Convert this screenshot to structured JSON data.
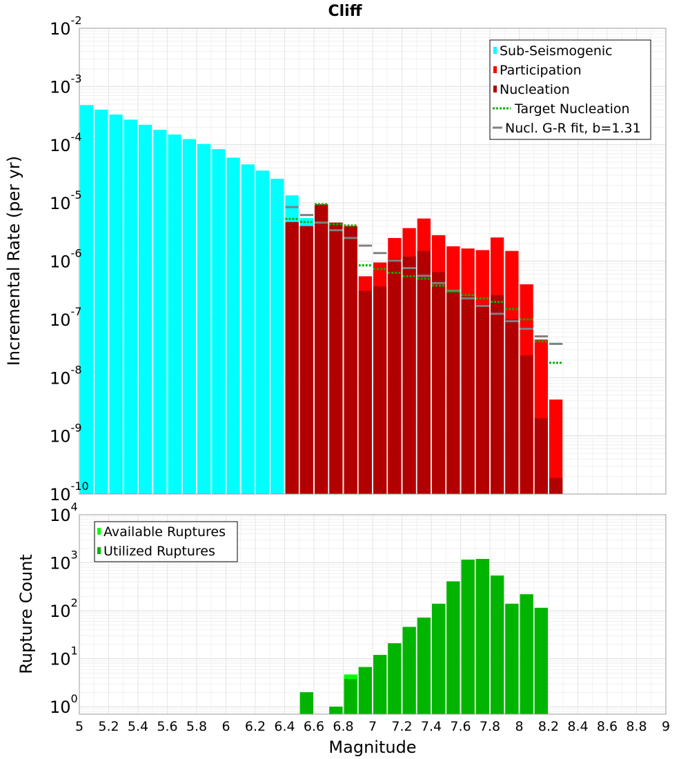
{
  "chart_data": [
    {
      "type": "bar",
      "title": "Cliff",
      "xlabel": "",
      "ylabel": "Incremental Rate (per yr)",
      "xlim": [
        5,
        9
      ],
      "ylim": [
        1e-10,
        0.01
      ],
      "y_scale": "log",
      "y_tick_exponents": [
        "-10",
        "-9",
        "-8",
        "-7",
        "-6",
        "-5",
        "-4",
        "-3",
        "-2"
      ],
      "grid": true,
      "legend_placement": "top-right",
      "bin_width": 0.1,
      "legend": [
        {
          "label": "Sub-Seismogenic",
          "color": "#00ffff",
          "style": "bar"
        },
        {
          "label": "Participation",
          "color": "#ff0000",
          "style": "bar"
        },
        {
          "label": "Nucleation",
          "color": "#b20000",
          "style": "bar"
        },
        {
          "label": "Target Nucleation",
          "color": "#00b400",
          "style": "dotted"
        },
        {
          "label": "Nucl. G-R fit, b=1.31",
          "color": "#808080",
          "style": "line"
        }
      ],
      "series": [
        {
          "name": "Sub-Seismogenic",
          "color": "#00ffff",
          "x": [
            5.05,
            5.15,
            5.25,
            5.35,
            5.45,
            5.55,
            5.65,
            5.75,
            5.85,
            5.95,
            6.05,
            6.15,
            6.25,
            6.35,
            6.45,
            6.55
          ],
          "values": [
            0.00048,
            0.0004,
            0.00033,
            0.00027,
            0.00022,
            0.00018,
            0.00015,
            0.000125,
            0.000103,
            8.4e-05,
            6e-05,
            4.6e-05,
            3.6e-05,
            2.6e-05,
            1.35e-05,
            5.5e-06
          ]
        },
        {
          "name": "Participation",
          "color": "#ff0000",
          "x": [
            6.45,
            6.55,
            6.65,
            6.75,
            6.85,
            6.95,
            7.05,
            7.15,
            7.25,
            7.35,
            7.45,
            7.55,
            7.65,
            7.75,
            7.85,
            7.95,
            8.05,
            8.15,
            8.25
          ],
          "values": [
            4.7e-06,
            4e-06,
            9.5e-06,
            4.6e-06,
            4e-06,
            5.5e-07,
            9.5e-07,
            2.5e-06,
            3.7e-06,
            5.4e-06,
            2.8e-06,
            1.8e-06,
            1.65e-06,
            1.55e-06,
            2.55e-06,
            1.5e-06,
            4e-07,
            4.5e-08,
            4.2e-09
          ]
        },
        {
          "name": "Nucleation",
          "color": "#b20000",
          "x": [
            6.45,
            6.55,
            6.65,
            6.75,
            6.85,
            6.95,
            7.05,
            7.15,
            7.25,
            7.35,
            7.45,
            7.55,
            7.65,
            7.75,
            7.85,
            7.95,
            8.05,
            8.15,
            8.25
          ],
          "values": [
            4.7e-06,
            4e-06,
            9.5e-06,
            4.6e-06,
            4e-06,
            3.1e-07,
            3.7e-07,
            1.1e-06,
            1.2e-06,
            1.5e-06,
            6.5e-07,
            3.2e-07,
            2.5e-07,
            1.8e-07,
            2.6e-07,
            1e-07,
            2.4e-08,
            2e-09,
            1.9e-10
          ]
        },
        {
          "name": "Target Nucleation",
          "color": "#00b400",
          "style": "dotted",
          "x": [
            6.45,
            6.55,
            6.65,
            6.75,
            6.85,
            6.95,
            7.05,
            7.15,
            7.25,
            7.35,
            7.45,
            7.55,
            7.65,
            7.75,
            7.85,
            7.95,
            8.05,
            8.15,
            8.25
          ],
          "values": [
            5.3e-06,
            4.7e-06,
            9.5e-06,
            4.3e-06,
            4.1e-06,
            8.5e-07,
            7.3e-07,
            6.3e-07,
            5.5e-07,
            5e-07,
            3.8e-07,
            3e-07,
            2.6e-07,
            2.3e-07,
            2e-07,
            1.5e-07,
            1e-07,
            4.2e-08,
            1.8e-08
          ]
        },
        {
          "name": "Nucl. G-R fit, b=1.31",
          "color": "#808080",
          "style": "line",
          "x": [
            6.45,
            6.55,
            6.65,
            6.75,
            6.85,
            6.95,
            7.05,
            7.15,
            7.25,
            7.35,
            7.45,
            7.55,
            7.65,
            7.75,
            7.85,
            7.95,
            8.05,
            8.15,
            8.25
          ],
          "values": [
            8.5e-06,
            6.2e-06,
            4.6e-06,
            3.4e-06,
            2.5e-06,
            1.85e-06,
            1.38e-06,
            1.02e-06,
            7.6e-07,
            5.6e-07,
            4.2e-07,
            3.1e-07,
            2.3e-07,
            1.7e-07,
            1.25e-07,
            9.3e-08,
            6.9e-08,
            5.1e-08,
            3.8e-08
          ]
        }
      ]
    },
    {
      "type": "bar",
      "title": "",
      "xlabel": "Magnitude",
      "ylabel": "Rupture Count",
      "xlim": [
        5,
        9
      ],
      "ylim": [
        0.7,
        10000
      ],
      "y_scale": "log",
      "y_tick_exponents": [
        "0",
        "1",
        "2",
        "3",
        "4"
      ],
      "x_ticks": [
        "5",
        "5.2",
        "5.4",
        "5.6",
        "5.8",
        "6",
        "6.2",
        "6.4",
        "6.6",
        "6.8",
        "7",
        "7.2",
        "7.4",
        "7.6",
        "7.8",
        "8",
        "8.2",
        "8.4",
        "8.6",
        "8.8",
        "9"
      ],
      "grid": true,
      "legend_placement": "top-left",
      "bin_width": 0.1,
      "legend": [
        {
          "label": "Available Ruptures",
          "color": "#00ff00",
          "style": "bar"
        },
        {
          "label": "Utilized Ruptures",
          "color": "#00b400",
          "style": "bar"
        }
      ],
      "series": [
        {
          "name": "Available Ruptures",
          "color": "#00ff00",
          "x": [
            6.55,
            6.75,
            6.85,
            6.95,
            7.05,
            7.15,
            7.25,
            7.35,
            7.45,
            7.55,
            7.65,
            7.75,
            7.85,
            7.95,
            8.05,
            8.15
          ],
          "values": [
            2,
            1,
            4.7,
            6.7,
            12,
            21,
            46,
            72,
            140,
            410,
            1160,
            1200,
            540,
            140,
            220,
            115
          ]
        },
        {
          "name": "Utilized Ruptures",
          "color": "#00b400",
          "x": [
            6.55,
            6.75,
            6.85,
            6.95,
            7.05,
            7.15,
            7.25,
            7.35,
            7.45,
            7.55,
            7.65,
            7.75,
            7.85,
            7.95,
            8.05,
            8.15
          ],
          "values": [
            2,
            1,
            3.8,
            6.7,
            12,
            21,
            46,
            72,
            140,
            410,
            1160,
            1200,
            540,
            140,
            220,
            115
          ]
        }
      ]
    }
  ]
}
